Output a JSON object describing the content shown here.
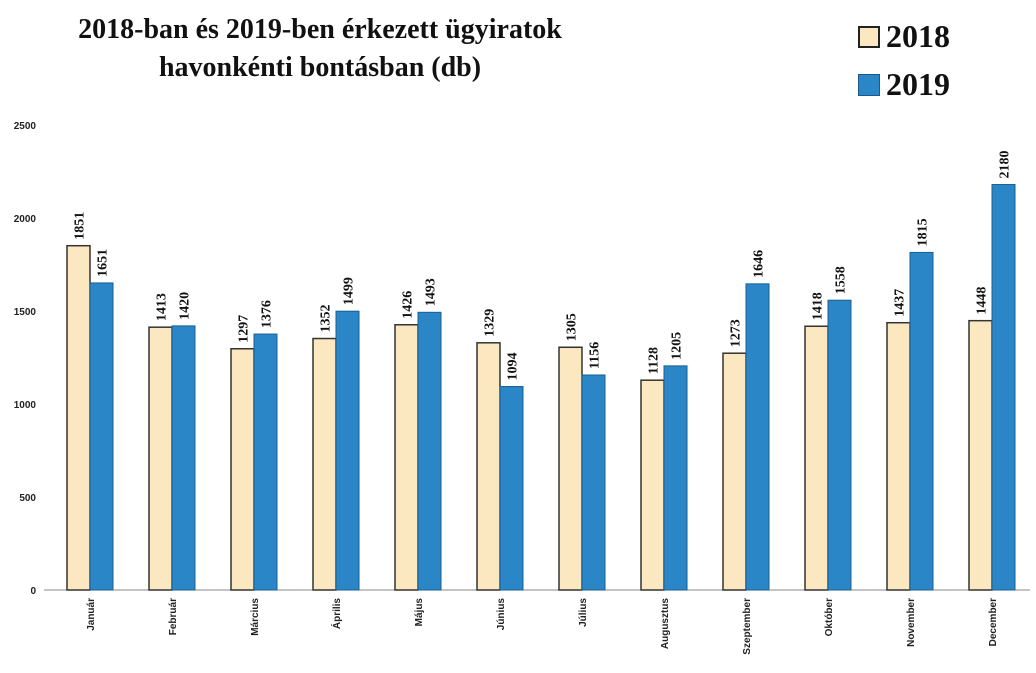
{
  "chart_data": {
    "type": "bar",
    "title": "2018-ban és 2019-ben érkezett ügyiratok",
    "subtitle": "havonkénti bontásban (db)",
    "categories": [
      "Január",
      "Február",
      "Március",
      "Április",
      "Május",
      "Június",
      "Július",
      "Augusztus",
      "Szeptember",
      "Október",
      "November",
      "December"
    ],
    "series": [
      {
        "name": "2018",
        "color": "#fbe7c0",
        "values": [
          1851,
          1413,
          1297,
          1352,
          1426,
          1329,
          1305,
          1128,
          1273,
          1418,
          1437,
          1448
        ],
        "labels": [
          "1851",
          "1413",
          "1297",
          "1352",
          "1426",
          "1329",
          "1305",
          "1128",
          "1273",
          "1418",
          "1437",
          "1448"
        ]
      },
      {
        "name": "2019",
        "color": "#2a86c6",
        "values": [
          1651,
          1420,
          1376,
          1499,
          1493,
          1094,
          1156,
          1205,
          1646,
          1558,
          1815,
          2180
        ],
        "labels": [
          "1651",
          "1420",
          "1376",
          "1499",
          "1493",
          "1094",
          "1156",
          "1205",
          "1646",
          "1558",
          "1815",
          "2180"
        ]
      }
    ],
    "yticks": [
      "0",
      "500",
      "1000",
      "1500",
      "2000",
      "2500"
    ],
    "ylim": [
      0,
      2500
    ],
    "grid": false,
    "legend": "top-right"
  }
}
